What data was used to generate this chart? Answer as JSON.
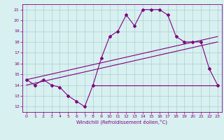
{
  "x": [
    0,
    1,
    2,
    3,
    4,
    5,
    6,
    7,
    8,
    9,
    10,
    11,
    12,
    13,
    14,
    15,
    16,
    17,
    18,
    19,
    20,
    21,
    22,
    23
  ],
  "temp_line": [
    14.5,
    14.0,
    14.5,
    14.0,
    13.8,
    13.0,
    12.5,
    12.0,
    14.0,
    16.5,
    18.5,
    19.0,
    20.5,
    19.5,
    21.0,
    21.0,
    21.0,
    20.5,
    18.5,
    18.0,
    18.0,
    18.0,
    15.5,
    14.0
  ],
  "line2_x": [
    0,
    23
  ],
  "line2_y": [
    14.5,
    18.5
  ],
  "line3_x": [
    0,
    23
  ],
  "line3_y": [
    14.0,
    18.0
  ],
  "hline_x": [
    8,
    23
  ],
  "hline_y": [
    14.0,
    14.0
  ],
  "color": "#800080",
  "bg_color": "#d8f0f0",
  "grid_color": "#aacfcf",
  "xlim": [
    -0.5,
    23.5
  ],
  "ylim": [
    11.5,
    21.5
  ],
  "yticks": [
    12,
    13,
    14,
    15,
    16,
    17,
    18,
    19,
    20,
    21
  ],
  "xticks": [
    0,
    1,
    2,
    3,
    4,
    5,
    6,
    7,
    8,
    9,
    10,
    11,
    12,
    13,
    14,
    15,
    16,
    17,
    18,
    19,
    20,
    21,
    22,
    23
  ],
  "xlabel": "Windchill (Refroidissement éolien,°C)",
  "marker": "D",
  "markersize": 2,
  "linewidth": 0.8
}
